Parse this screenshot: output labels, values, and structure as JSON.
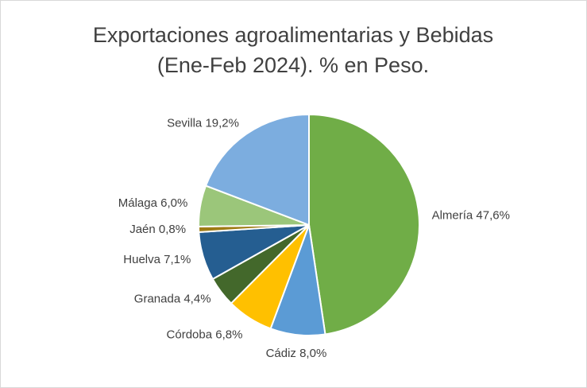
{
  "chart_data": {
    "type": "pie",
    "title": [
      "Exportaciones agroalimentarias y Bebidas",
      "(Ene-Feb 2024). % en Peso."
    ],
    "categories": [
      "Almería",
      "Cádiz",
      "Córdoba",
      "Granada",
      "Huelva",
      "Jaén",
      "Málaga",
      "Sevilla"
    ],
    "values": [
      47.6,
      8.0,
      6.8,
      4.4,
      7.1,
      0.8,
      6.0,
      19.2
    ],
    "value_labels": [
      "47,6%",
      "8,0%",
      "6,8%",
      "4,4%",
      "7,1%",
      "0,8%",
      "6,0%",
      "19,2%"
    ],
    "colors": [
      "#70ad47",
      "#5b9bd5",
      "#ffc000",
      "#43682b",
      "#255e91",
      "#9e7b14",
      "#9bc67a",
      "#7caddf"
    ]
  }
}
